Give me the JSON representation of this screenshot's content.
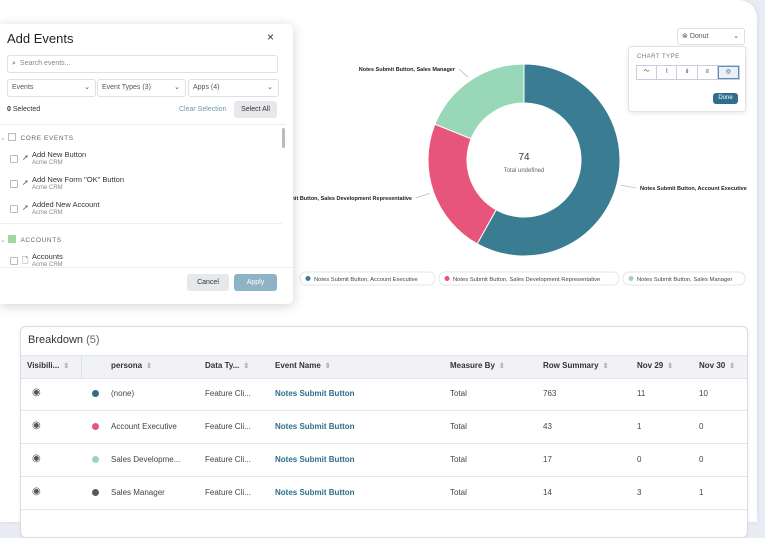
{
  "add_events": {
    "title": "Add Events",
    "close": "×",
    "search_placeholder": "Search events...",
    "filters": [
      "Events",
      "Event Types (3)",
      "Apps (4)"
    ],
    "selected_count": 0,
    "selected_label": "Selected",
    "clear_selection": "Clear Selection",
    "select_all": "Select All",
    "groups": [
      {
        "label": "CORE EVENTS",
        "items": [
          {
            "name": "Add New Button",
            "app": "Acme CRM"
          },
          {
            "name": "Add New Form \"OK\" Button",
            "app": "Acme CRM"
          },
          {
            "name": "Added New Account",
            "app": "Acme CRM"
          }
        ]
      },
      {
        "label": "ACCOUNTS",
        "items": [
          {
            "name": "Accounts",
            "app": "Acme CRM"
          }
        ]
      }
    ],
    "cancel": "Cancel",
    "apply": "Apply"
  },
  "chart": {
    "type": "donut",
    "center_value": 74,
    "center_label": "Total undefined",
    "segments": [
      {
        "name": "Notes Submit Button, Account Executive",
        "color": "#3a7d93"
      },
      {
        "name": "Notes Submit Button, Sales Development Representative",
        "color": "#e8557a"
      },
      {
        "name": "Notes Submit Button, Sales Manager",
        "color": "#98d8b8"
      }
    ]
  },
  "chart_type": {
    "select": "Donut",
    "label": "CHART TYPE",
    "done": "Done"
  },
  "breakdown": {
    "title": "Breakdown",
    "count": "(5)",
    "columns": [
      "Visibili...",
      "persona",
      "Data Ty...",
      "Event Name",
      "Measure By",
      "Row Summary",
      "Nov 29",
      "Nov 30"
    ],
    "rows": [
      {
        "color": "#2f6f86",
        "persona": "(none)",
        "data_type": "Feature Cli...",
        "event_name": "Notes Submit Button",
        "measure_by": "Total",
        "row_summary": 763,
        "nov_29": 11,
        "nov_30": 10
      },
      {
        "color": "#e8557a",
        "persona": "Account Executive",
        "data_type": "Feature Cli...",
        "event_name": "Notes Submit Button",
        "measure_by": "Total",
        "row_summary": 43,
        "nov_29": 1,
        "nov_30": 0
      },
      {
        "color": "#98d8b8",
        "persona": "Sales Developme...",
        "data_type": "Feature Cli...",
        "event_name": "Notes Submit Button",
        "measure_by": "Total",
        "row_summary": 17,
        "nov_29": 0,
        "nov_30": 0
      },
      {
        "color": "#555a60",
        "persona": "Sales Manager",
        "data_type": "Feature Cli...",
        "event_name": "Notes Submit Button",
        "measure_by": "Total",
        "row_summary": 14,
        "nov_29": 3,
        "nov_30": 1
      }
    ]
  }
}
